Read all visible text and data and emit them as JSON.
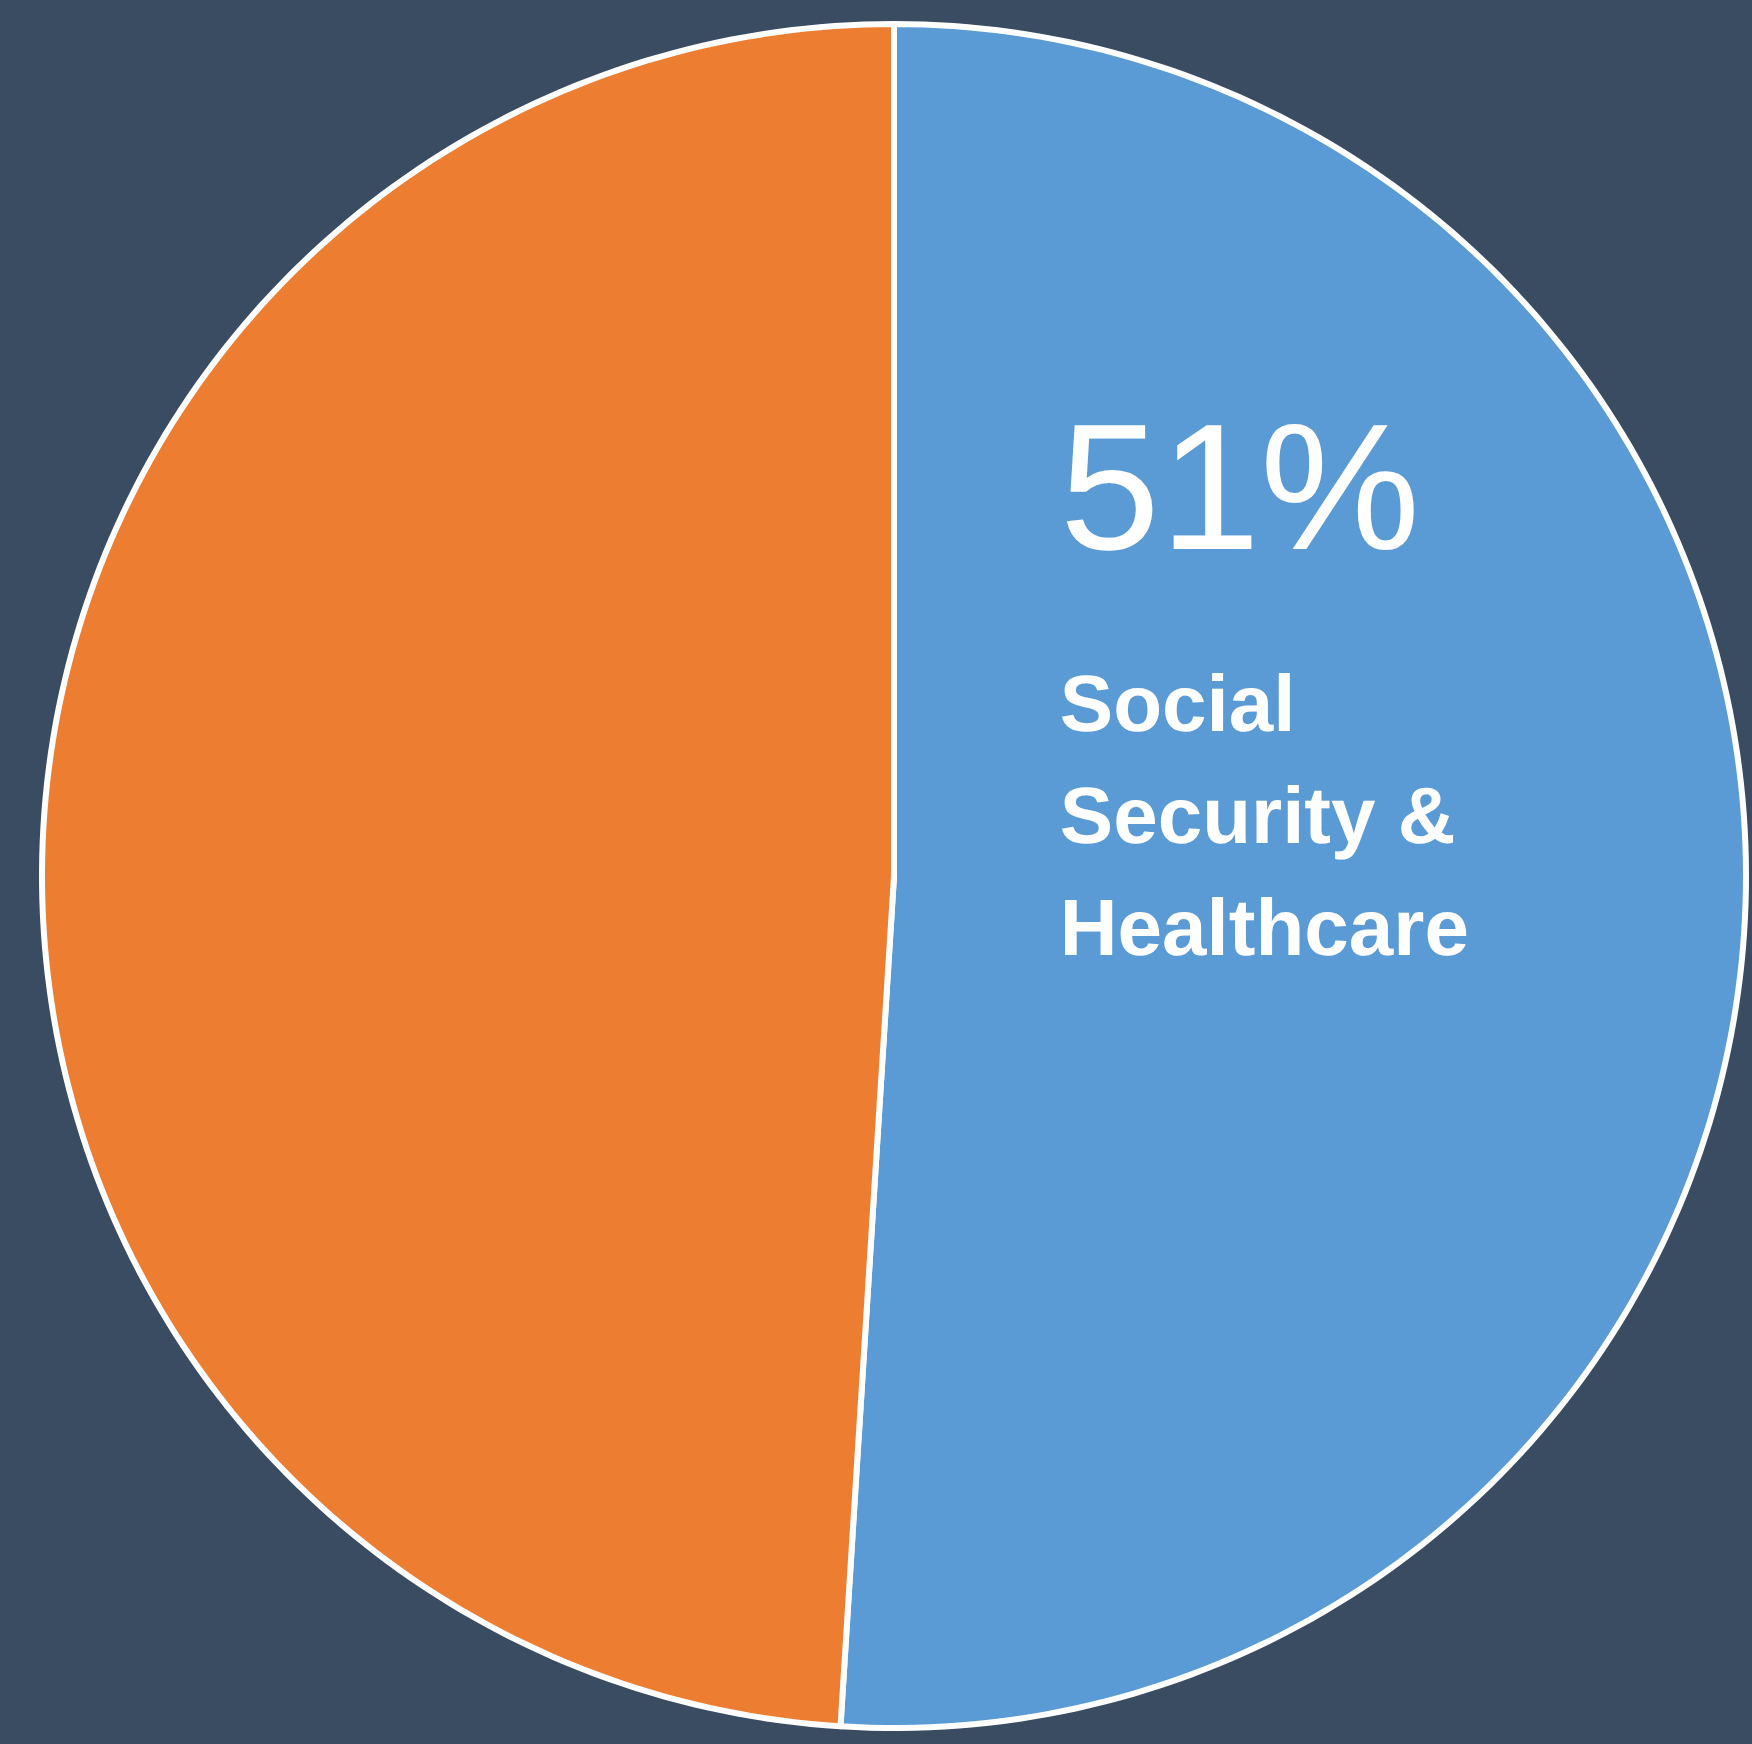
{
  "chart_data": {
    "type": "pie",
    "categories": [
      "Social Security & Healthcare",
      null
    ],
    "values": [
      51,
      49
    ],
    "colors": [
      "#5b9bd5",
      "#ed7d31"
    ],
    "value_labels": [
      "51%",
      null
    ]
  }
}
